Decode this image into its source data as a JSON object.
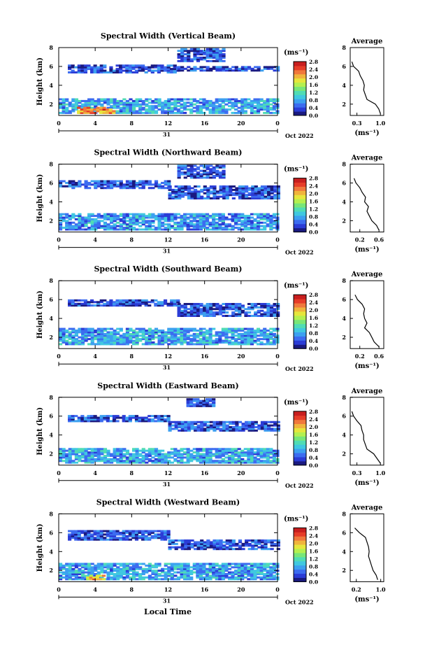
{
  "figure": {
    "xlabel": "Local Time",
    "date_label": "Oct 2022",
    "day_label": "31",
    "colorbar_unit": "(ms⁻¹)",
    "avg_title": "Average",
    "avg_unit": "(ms⁻¹)",
    "ylabel": "Height (km)",
    "colorscale": [
      "#1a1a80",
      "#2b3cd6",
      "#3c6cf0",
      "#3ca0f0",
      "#40c8e0",
      "#50dcb4",
      "#78e678",
      "#b4f050",
      "#e6e63c",
      "#f0b43c",
      "#f0783c",
      "#e63c28",
      "#c81e1e"
    ]
  },
  "chart_data": [
    {
      "type": "heatmap",
      "title": "Spectral Width (Vertical Beam)",
      "x_ticks": [
        "0",
        "4",
        "8",
        "12",
        "16",
        "20",
        "0"
      ],
      "y_ticks": [
        "8",
        "6",
        "4",
        "2"
      ],
      "xlim": [
        0,
        24
      ],
      "ylim": [
        0.8,
        8
      ],
      "colorbar_ticks": [
        "2.8",
        "2.4",
        "2.0",
        "1.6",
        "1.2",
        "0.8",
        "0.4",
        "0.0"
      ],
      "colorbar_range": [
        0,
        2.8
      ],
      "layers": [
        {
          "x": [
            1,
            13
          ],
          "y": [
            5.3,
            6.1
          ],
          "value": 0.3
        },
        {
          "x": [
            13,
            24
          ],
          "y": [
            5.5,
            5.9
          ],
          "value": 0.3
        },
        {
          "x": [
            0,
            24
          ],
          "y": [
            1.0,
            2.6
          ],
          "value": 0.7
        },
        {
          "x": [
            2,
            6
          ],
          "y": [
            1.0,
            1.6
          ],
          "value": 2.2
        },
        {
          "x": [
            13,
            18
          ],
          "y": [
            6.5,
            7.8
          ],
          "value": 0.3
        }
      ],
      "average": {
        "x_ticks": [
          "0.3",
          "1.0"
        ],
        "xlim": [
          0.1,
          1.1
        ],
        "heights": [
          1.0,
          1.5,
          2.0,
          2.5,
          3.0,
          3.5,
          4.0,
          4.5,
          5.0,
          5.5,
          6.0,
          6.5
        ],
        "values": [
          1.0,
          0.95,
          0.85,
          0.6,
          0.55,
          0.5,
          0.52,
          0.48,
          0.4,
          0.35,
          0.2,
          0.15
        ]
      }
    },
    {
      "type": "heatmap",
      "title": "Spectral Width (Northward Beam)",
      "x_ticks": [
        "0",
        "4",
        "8",
        "12",
        "16",
        "20",
        "0"
      ],
      "y_ticks": [
        "8",
        "6",
        "4",
        "2"
      ],
      "xlim": [
        0,
        24
      ],
      "ylim": [
        0.8,
        8
      ],
      "colorbar_ticks": [
        "2.8",
        "2.4",
        "2.0",
        "1.6",
        "1.2",
        "0.8",
        "0.4",
        "0.0"
      ],
      "colorbar_range": [
        0,
        2.8
      ],
      "layers": [
        {
          "x": [
            0,
            12
          ],
          "y": [
            5.4,
            6.2
          ],
          "value": 0.3
        },
        {
          "x": [
            12,
            24
          ],
          "y": [
            4.3,
            5.6
          ],
          "value": 0.3
        },
        {
          "x": [
            0,
            24
          ],
          "y": [
            1.0,
            2.8
          ],
          "value": 0.6
        },
        {
          "x": [
            13,
            18
          ],
          "y": [
            6.5,
            7.8
          ],
          "value": 0.3
        }
      ],
      "average": {
        "x_ticks": [
          "0.2",
          "0.6"
        ],
        "xlim": [
          0.0,
          0.7
        ],
        "heights": [
          1.0,
          1.5,
          2.0,
          2.5,
          3.0,
          3.5,
          4.0,
          4.5,
          5.0,
          5.5,
          6.0,
          6.5
        ],
        "values": [
          0.6,
          0.55,
          0.45,
          0.4,
          0.35,
          0.38,
          0.3,
          0.32,
          0.25,
          0.2,
          0.12,
          0.08
        ]
      }
    },
    {
      "type": "heatmap",
      "title": "Spectral Width (Southward Beam)",
      "x_ticks": [
        "0",
        "4",
        "8",
        "12",
        "16",
        "20",
        "0"
      ],
      "y_ticks": [
        "8",
        "6",
        "4",
        "2"
      ],
      "xlim": [
        0,
        24
      ],
      "ylim": [
        0.8,
        8
      ],
      "colorbar_ticks": [
        "2.8",
        "2.4",
        "2.0",
        "1.6",
        "1.2",
        "0.8",
        "0.4",
        "0.0"
      ],
      "colorbar_range": [
        0,
        2.8
      ],
      "layers": [
        {
          "x": [
            1,
            13
          ],
          "y": [
            5.3,
            6.0
          ],
          "value": 0.3
        },
        {
          "x": [
            13,
            24
          ],
          "y": [
            4.2,
            5.5
          ],
          "value": 0.3
        },
        {
          "x": [
            0,
            24
          ],
          "y": [
            1.2,
            3.0
          ],
          "value": 0.7
        }
      ],
      "average": {
        "x_ticks": [
          "0.2",
          "0.6"
        ],
        "xlim": [
          0.0,
          0.7
        ],
        "heights": [
          1.0,
          1.5,
          2.0,
          2.5,
          3.0,
          3.5,
          4.0,
          4.5,
          5.0,
          5.5,
          6.0,
          6.5
        ],
        "values": [
          0.6,
          0.5,
          0.45,
          0.4,
          0.3,
          0.35,
          0.3,
          0.28,
          0.3,
          0.25,
          0.15,
          0.1
        ]
      }
    },
    {
      "type": "heatmap",
      "title": "Spectral Width (Eastward Beam)",
      "x_ticks": [
        "0",
        "4",
        "8",
        "12",
        "16",
        "20",
        "0"
      ],
      "y_ticks": [
        "8",
        "6",
        "4",
        "2"
      ],
      "xlim": [
        0,
        24
      ],
      "ylim": [
        0.8,
        8
      ],
      "colorbar_ticks": [
        "2.8",
        "2.4",
        "2.0",
        "1.6",
        "1.2",
        "0.8",
        "0.4",
        "0.0"
      ],
      "colorbar_range": [
        0,
        2.8
      ],
      "layers": [
        {
          "x": [
            1,
            12
          ],
          "y": [
            5.4,
            6.0
          ],
          "value": 0.3
        },
        {
          "x": [
            12,
            24
          ],
          "y": [
            4.4,
            5.3
          ],
          "value": 0.3
        },
        {
          "x": [
            0,
            24
          ],
          "y": [
            1.0,
            2.6
          ],
          "value": 0.7
        },
        {
          "x": [
            14,
            17
          ],
          "y": [
            7.0,
            7.8
          ],
          "value": 0.3
        }
      ],
      "average": {
        "x_ticks": [
          "0.3",
          "1.0"
        ],
        "xlim": [
          0.1,
          1.1
        ],
        "heights": [
          1.0,
          1.5,
          2.0,
          2.5,
          3.0,
          3.5,
          4.0,
          4.5,
          5.0,
          5.5,
          6.0,
          6.5
        ],
        "values": [
          1.0,
          0.9,
          0.8,
          0.6,
          0.55,
          0.5,
          0.5,
          0.45,
          0.42,
          0.3,
          0.2,
          0.15
        ]
      }
    },
    {
      "type": "heatmap",
      "title": "Spectral Width (Westward Beam)",
      "x_ticks": [
        "0",
        "4",
        "8",
        "12",
        "16",
        "20",
        "0"
      ],
      "y_ticks": [
        "8",
        "6",
        "4",
        "2"
      ],
      "xlim": [
        0,
        24
      ],
      "ylim": [
        0.8,
        8
      ],
      "colorbar_ticks": [
        "2.8",
        "2.4",
        "2.0",
        "1.6",
        "1.2",
        "0.8",
        "0.4",
        "0.0"
      ],
      "colorbar_range": [
        0,
        2.8
      ],
      "layers": [
        {
          "x": [
            1,
            12
          ],
          "y": [
            5.2,
            6.1
          ],
          "value": 0.3
        },
        {
          "x": [
            12,
            24
          ],
          "y": [
            4.2,
            5.2
          ],
          "value": 0.3
        },
        {
          "x": [
            0,
            24
          ],
          "y": [
            1.0,
            2.8
          ],
          "value": 0.7
        },
        {
          "x": [
            3,
            5
          ],
          "y": [
            1.0,
            1.4
          ],
          "value": 2.0
        }
      ],
      "average": {
        "x_ticks": [
          "0.2",
          "1.0"
        ],
        "xlim": [
          0.0,
          1.1
        ],
        "heights": [
          1.0,
          1.5,
          2.0,
          2.5,
          3.0,
          3.5,
          4.0,
          4.5,
          5.0,
          5.5,
          6.0,
          6.5
        ],
        "values": [
          0.9,
          0.85,
          0.75,
          0.7,
          0.65,
          0.6,
          0.62,
          0.6,
          0.55,
          0.5,
          0.3,
          0.15
        ]
      }
    }
  ]
}
